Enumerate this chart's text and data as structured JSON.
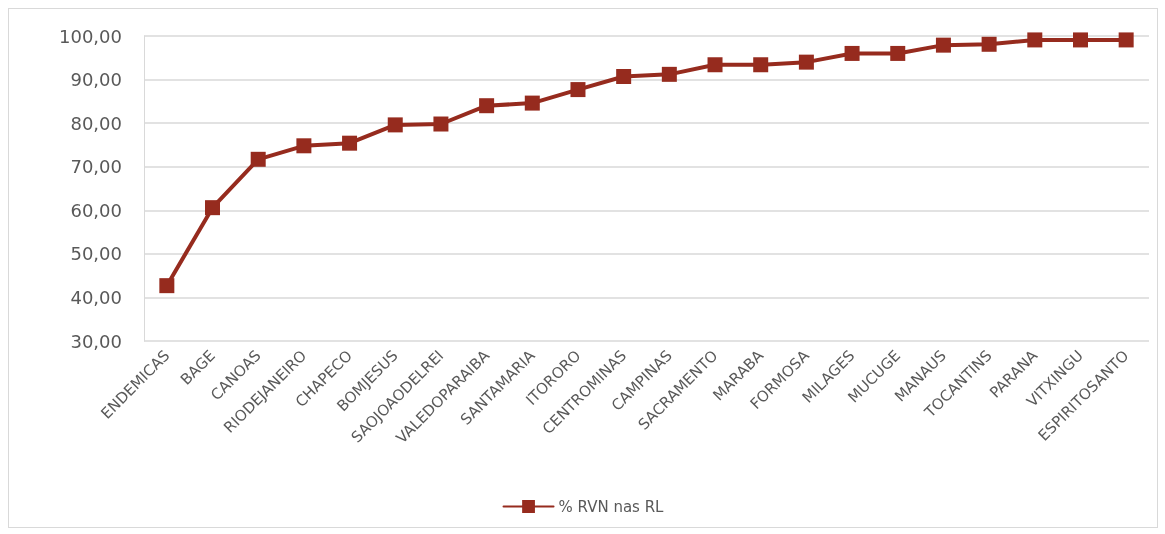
{
  "chart_data": {
    "type": "line",
    "categories": [
      "ENDEMICAS",
      "BAGE",
      "CANOAS",
      "RIODEJANEIRO",
      "CHAPECO",
      "BOMJESUS",
      "SAOJOAODELREI",
      "VALEDOPARAIBA",
      "SANTAMARIA",
      "ITORORO",
      "CENTROMINAS",
      "CAMPINAS",
      "SACRAMENTO",
      "MARABA",
      "FORMOSA",
      "MILAGES",
      "MUCUGE",
      "MANAUS",
      "TOCANTINS",
      "PARANA",
      "VITXINGU",
      "ESPIRITOSANTO"
    ],
    "series": [
      {
        "name": "% RVN nas RL",
        "color": "#962b1e",
        "values": [
          42.7,
          60.6,
          71.7,
          74.8,
          75.4,
          79.6,
          79.8,
          84.0,
          84.6,
          87.7,
          90.7,
          91.2,
          93.4,
          93.4,
          94.0,
          96.0,
          96.0,
          97.9,
          98.1,
          99.1,
          99.1,
          99.1
        ]
      }
    ],
    "ylim": [
      30,
      100
    ],
    "yticks": [
      {
        "value": 30,
        "label": "30,00"
      },
      {
        "value": 40,
        "label": "40,00"
      },
      {
        "value": 50,
        "label": "50,00"
      },
      {
        "value": 60,
        "label": "60,00"
      },
      {
        "value": 70,
        "label": "70,00"
      },
      {
        "value": 80,
        "label": "80,00"
      },
      {
        "value": 90,
        "label": "90,00"
      },
      {
        "value": 100,
        "label": "100,00"
      }
    ],
    "grid": "y",
    "legend": "bottom",
    "marker": "square",
    "line_style": "solid"
  }
}
